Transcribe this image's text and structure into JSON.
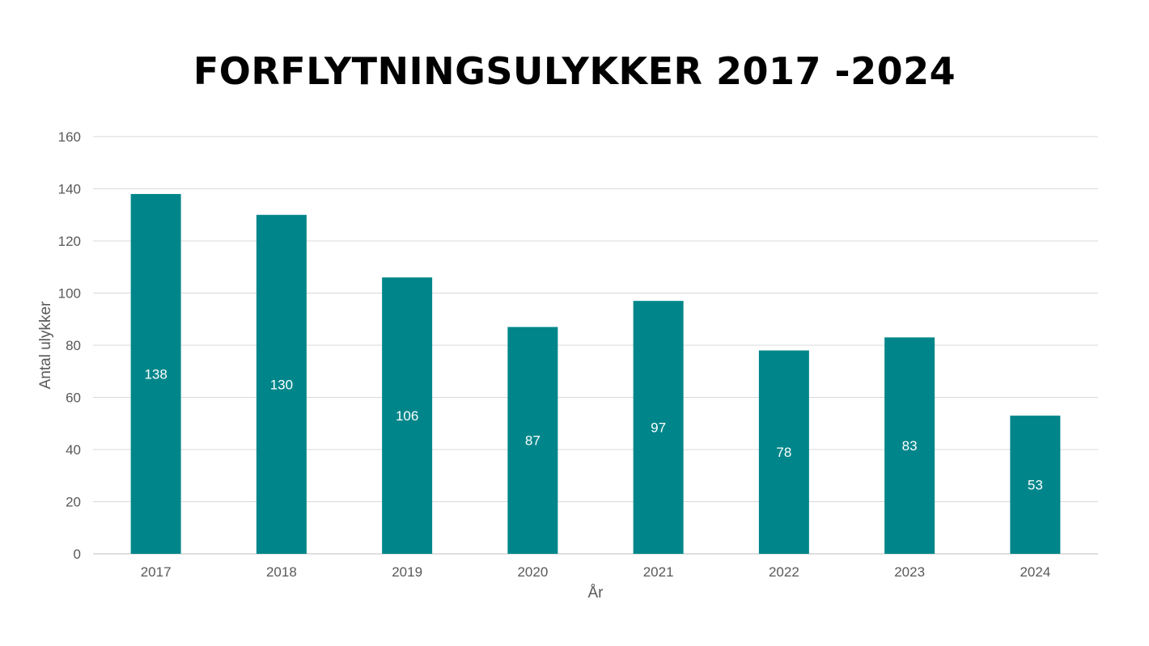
{
  "chart_data": {
    "type": "bar",
    "title": "FORFLYTNINGSULYKKER 2017 -2024",
    "xlabel": "År",
    "ylabel": "Antal ulykker",
    "categories": [
      "2017",
      "2018",
      "2019",
      "2020",
      "2021",
      "2022",
      "2023",
      "2024"
    ],
    "values": [
      138,
      130,
      106,
      87,
      97,
      78,
      83,
      53
    ],
    "ylim": [
      0,
      160
    ],
    "yticks": [
      0,
      20,
      40,
      60,
      80,
      100,
      120,
      140,
      160
    ],
    "grid": true,
    "legend": "none",
    "colors": {
      "bar": "#00868A",
      "grid": "#D9D9D9",
      "axis_text": "#595959"
    }
  }
}
